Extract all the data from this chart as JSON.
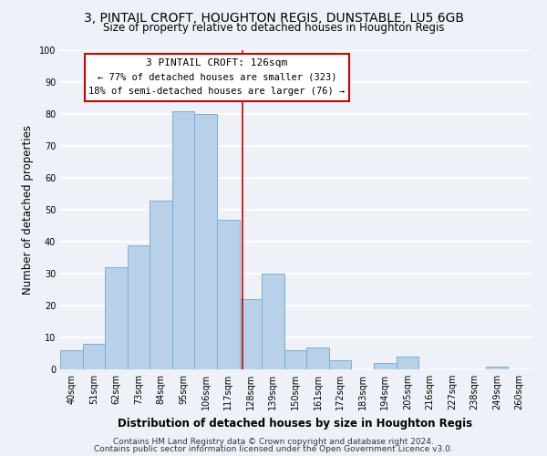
{
  "title": "3, PINTAIL CROFT, HOUGHTON REGIS, DUNSTABLE, LU5 6GB",
  "subtitle": "Size of property relative to detached houses in Houghton Regis",
  "xlabel": "Distribution of detached houses by size in Houghton Regis",
  "ylabel": "Number of detached properties",
  "bin_labels": [
    "40sqm",
    "51sqm",
    "62sqm",
    "73sqm",
    "84sqm",
    "95sqm",
    "106sqm",
    "117sqm",
    "128sqm",
    "139sqm",
    "150sqm",
    "161sqm",
    "172sqm",
    "183sqm",
    "194sqm",
    "205sqm",
    "216sqm",
    "227sqm",
    "238sqm",
    "249sqm",
    "260sqm"
  ],
  "bar_values": [
    6,
    8,
    32,
    39,
    53,
    81,
    80,
    47,
    22,
    30,
    6,
    7,
    3,
    0,
    2,
    4,
    0,
    0,
    0,
    1,
    0
  ],
  "bar_color": "#b8d0e8",
  "bar_edge_color": "#7aaed0",
  "vline_x": 7.64,
  "vline_color": "#cc0000",
  "annotation_line1": "3 PINTAIL CROFT: 126sqm",
  "annotation_line2": "← 77% of detached houses are smaller (323)",
  "annotation_line3": "18% of semi-detached houses are larger (76) →",
  "annotation_box_edge": "#cc0000",
  "annotation_box_face": "#ffffff",
  "ylim": [
    0,
    100
  ],
  "footer_line1": "Contains HM Land Registry data © Crown copyright and database right 2024.",
  "footer_line2": "Contains public sector information licensed under the Open Government Licence v3.0.",
  "background_color": "#eef2f8",
  "grid_color": "#ffffff",
  "title_fontsize": 10,
  "subtitle_fontsize": 8.5,
  "axis_label_fontsize": 8.5,
  "tick_fontsize": 7,
  "footer_fontsize": 6.5,
  "ann_fontsize1": 8,
  "ann_fontsize2": 7.5
}
